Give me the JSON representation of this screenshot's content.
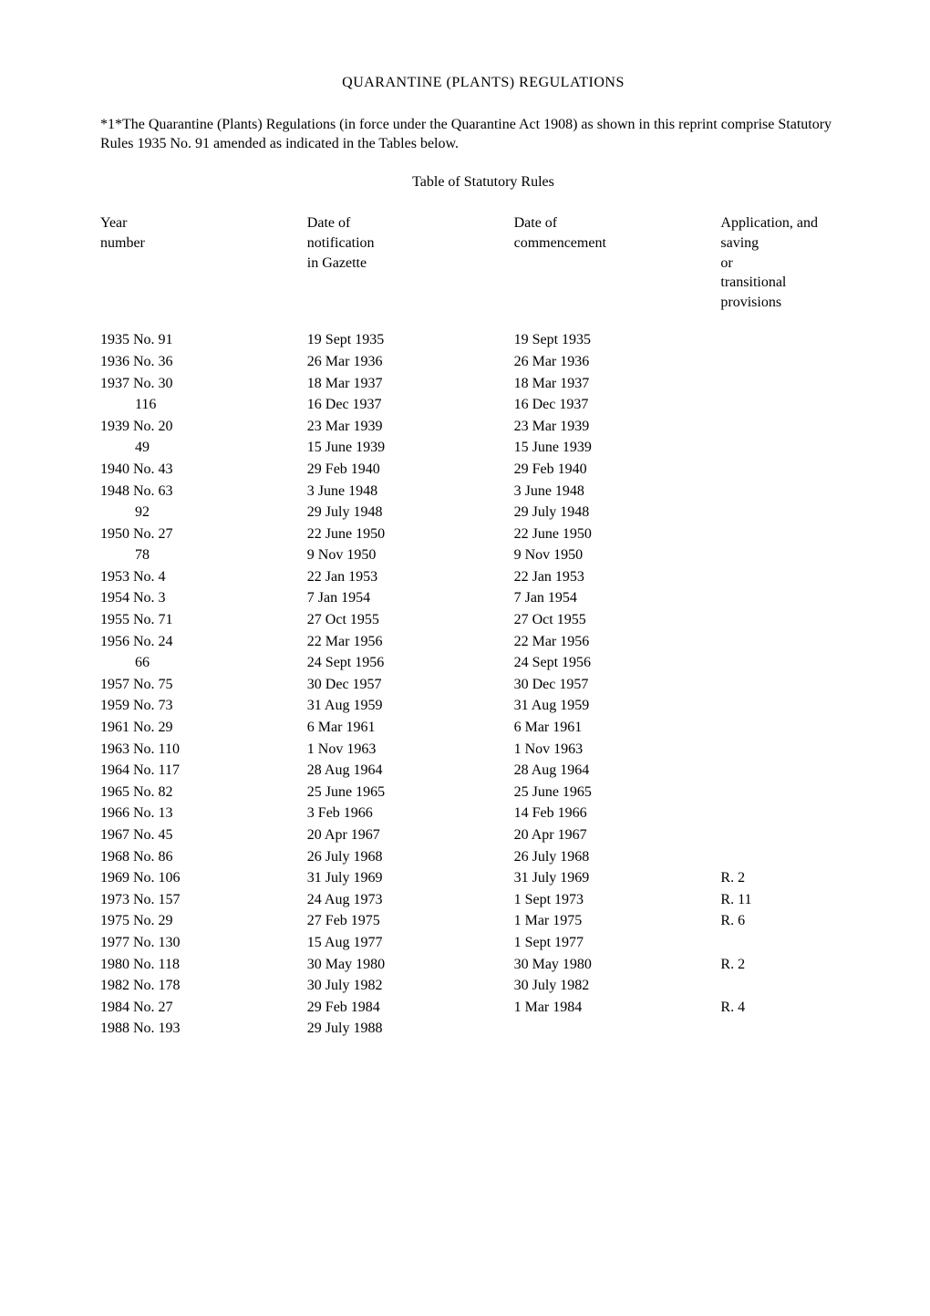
{
  "title": "QUARANTINE (PLANTS) REGULATIONS",
  "note": "*1*The Quarantine (Plants) Regulations (in force under the Quarantine Act 1908) as shown in this reprint comprise Statutory Rules 1935 No. 91 amended as indicated in the Tables below.",
  "subtitle": "Table of Statutory Rules",
  "headers": {
    "year": "Year\nnumber",
    "notif": "Date of\nnotification\nin Gazette",
    "comm": "Date of\ncommencement",
    "appl": "Application, and\nsaving\nor\ntransitional\nprovisions"
  },
  "rows": [
    {
      "year": "1935 No. 91",
      "indent": false,
      "notif": "19 Sept 1935",
      "comm": "19 Sept 1935",
      "appl": ""
    },
    {
      "year": "1936 No. 36",
      "indent": false,
      "notif": "26 Mar 1936",
      "comm": "26 Mar 1936",
      "appl": ""
    },
    {
      "year": "1937 No. 30",
      "indent": false,
      "notif": "18 Mar 1937",
      "comm": "18 Mar 1937",
      "appl": ""
    },
    {
      "year": "116",
      "indent": true,
      "notif": "16 Dec 1937",
      "comm": "16 Dec 1937",
      "appl": ""
    },
    {
      "year": "1939 No. 20",
      "indent": false,
      "notif": "23 Mar 1939",
      "comm": "23 Mar 1939",
      "appl": ""
    },
    {
      "year": "49",
      "indent": true,
      "notif": "15 June 1939",
      "comm": "15 June 1939",
      "appl": ""
    },
    {
      "year": "1940 No. 43",
      "indent": false,
      "notif": "29 Feb 1940",
      "comm": "29 Feb 1940",
      "appl": ""
    },
    {
      "year": "1948 No. 63",
      "indent": false,
      "notif": "3 June 1948",
      "comm": "3 June 1948",
      "appl": ""
    },
    {
      "year": "92",
      "indent": true,
      "notif": "29 July 1948",
      "comm": "29 July 1948",
      "appl": ""
    },
    {
      "year": "1950 No. 27",
      "indent": false,
      "notif": "22 June 1950",
      "comm": "22 June 1950",
      "appl": ""
    },
    {
      "year": "78",
      "indent": true,
      "notif": "9 Nov 1950",
      "comm": "9 Nov 1950",
      "appl": ""
    },
    {
      "year": "1953 No. 4",
      "indent": false,
      "notif": "22 Jan 1953",
      "comm": "22 Jan 1953",
      "appl": ""
    },
    {
      "year": "1954 No. 3",
      "indent": false,
      "notif": "7 Jan 1954",
      "comm": "7 Jan 1954",
      "appl": ""
    },
    {
      "year": "1955 No. 71",
      "indent": false,
      "notif": "27 Oct 1955",
      "comm": "27 Oct 1955",
      "appl": ""
    },
    {
      "year": "1956 No. 24",
      "indent": false,
      "notif": "22 Mar 1956",
      "comm": "22 Mar 1956",
      "appl": ""
    },
    {
      "year": "66",
      "indent": true,
      "notif": "24 Sept 1956",
      "comm": "24 Sept 1956",
      "appl": ""
    },
    {
      "year": "1957 No. 75",
      "indent": false,
      "notif": "30 Dec 1957",
      "comm": "30 Dec 1957",
      "appl": ""
    },
    {
      "year": "1959 No. 73",
      "indent": false,
      "notif": "31 Aug 1959",
      "comm": "31 Aug 1959",
      "appl": ""
    },
    {
      "year": "1961 No. 29",
      "indent": false,
      "notif": "6 Mar 1961",
      "comm": "6 Mar 1961",
      "appl": ""
    },
    {
      "year": "1963 No. 110",
      "indent": false,
      "notif": "1 Nov 1963",
      "comm": "1 Nov 1963",
      "appl": ""
    },
    {
      "year": "1964 No. 117",
      "indent": false,
      "notif": "28 Aug 1964",
      "comm": "28 Aug 1964",
      "appl": ""
    },
    {
      "year": "1965 No. 82",
      "indent": false,
      "notif": "25 June 1965",
      "comm": "25 June 1965",
      "appl": ""
    },
    {
      "year": "1966 No. 13",
      "indent": false,
      "notif": "3 Feb 1966",
      "comm": "14 Feb 1966",
      "appl": ""
    },
    {
      "year": "1967 No. 45",
      "indent": false,
      "notif": "20 Apr 1967",
      "comm": "20 Apr 1967",
      "appl": ""
    },
    {
      "year": "1968 No. 86",
      "indent": false,
      "notif": "26 July 1968",
      "comm": "26 July 1968",
      "appl": ""
    },
    {
      "year": "1969 No. 106",
      "indent": false,
      "notif": "31 July 1969",
      "comm": "31 July 1969",
      "appl": "R. 2"
    },
    {
      "year": "1973 No. 157",
      "indent": false,
      "notif": "24 Aug 1973",
      "comm": "1 Sept 1973",
      "appl": "R. 11"
    },
    {
      "year": "1975 No. 29",
      "indent": false,
      "notif": "27 Feb 1975",
      "comm": "1 Mar 1975",
      "appl": "R. 6"
    },
    {
      "year": "1977 No. 130",
      "indent": false,
      "notif": "15 Aug 1977",
      "comm": "1 Sept 1977",
      "appl": ""
    },
    {
      "year": "1980 No. 118",
      "indent": false,
      "notif": "30 May 1980",
      "comm": "30 May 1980",
      "appl": "R. 2"
    },
    {
      "year": "1982 No. 178",
      "indent": false,
      "notif": "30 July 1982",
      "comm": "30 July 1982",
      "appl": ""
    },
    {
      "year": "1984 No. 27",
      "indent": false,
      "notif": "29 Feb 1984",
      "comm": "1 Mar 1984",
      "appl": "R. 4"
    },
    {
      "year": "1988 No. 193",
      "indent": false,
      "notif": "29 July 1988",
      "comm": "",
      "appl": ""
    }
  ]
}
